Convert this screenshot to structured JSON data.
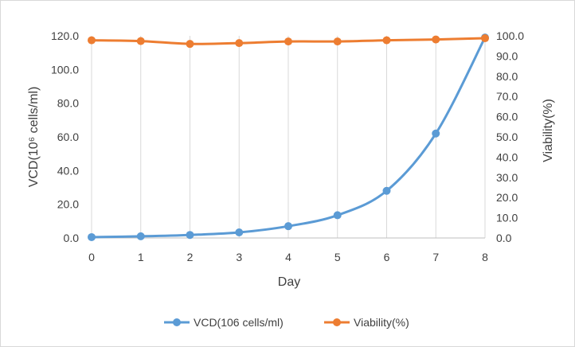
{
  "chart_data": {
    "type": "line",
    "x": [
      0,
      1,
      2,
      3,
      4,
      5,
      6,
      7,
      8
    ],
    "x_tick_labels": [
      "0",
      "1",
      "2",
      "3",
      "4",
      "5",
      "6",
      "7",
      "8"
    ],
    "xlabel": "Day",
    "xlim": [
      0,
      8
    ],
    "ylabel": "VCD(10⁶ cells/ml)",
    "ylim": [
      0,
      120
    ],
    "y_tick_labels": [
      "0.0",
      "20.0",
      "40.0",
      "60.0",
      "80.0",
      "100.0",
      "120.0"
    ],
    "y2label": "Viability(%)",
    "y2lim": [
      0,
      100
    ],
    "y2_tick_labels": [
      "0.0",
      "10.0",
      "20.0",
      "30.0",
      "40.0",
      "50.0",
      "60.0",
      "70.0",
      "80.0",
      "90.0",
      "100.0"
    ],
    "grid": "vertical",
    "legend_position": "bottom",
    "series": [
      {
        "name": "VCD(106 cells/ml)",
        "axis": "left",
        "color": "#5b9bd5",
        "marker": "circle",
        "values": [
          0.5,
          1.0,
          1.8,
          3.3,
          7.0,
          13.5,
          28.0,
          62.0,
          119.0
        ]
      },
      {
        "name": "Viability(%)",
        "axis": "right",
        "color": "#ed7d31",
        "marker": "circle",
        "values": [
          97.8,
          97.4,
          96.0,
          96.4,
          97.2,
          97.2,
          97.8,
          98.2,
          98.8
        ]
      }
    ]
  }
}
